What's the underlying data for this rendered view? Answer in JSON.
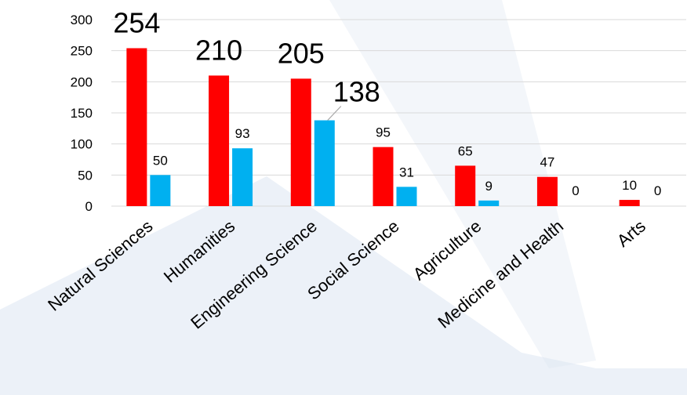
{
  "chart_data": {
    "type": "bar",
    "categories": [
      "Natural Sciences",
      "Humanities",
      "Engineering Science",
      "Social Science",
      "Agriculture",
      "Medicine and Health",
      "Arts"
    ],
    "series": [
      {
        "values": [
          254,
          210,
          205,
          95,
          65,
          47,
          10
        ],
        "color": "#ff0000"
      },
      {
        "values": [
          50,
          93,
          138,
          31,
          9,
          0,
          0
        ],
        "color": "#00b0f0"
      }
    ],
    "yticks": [
      "0",
      "50",
      "100",
      "150",
      "200",
      "250",
      "300"
    ],
    "ylim": [
      0,
      300
    ],
    "grid": true,
    "legend": "none",
    "background_accent": "#dde6f2"
  }
}
